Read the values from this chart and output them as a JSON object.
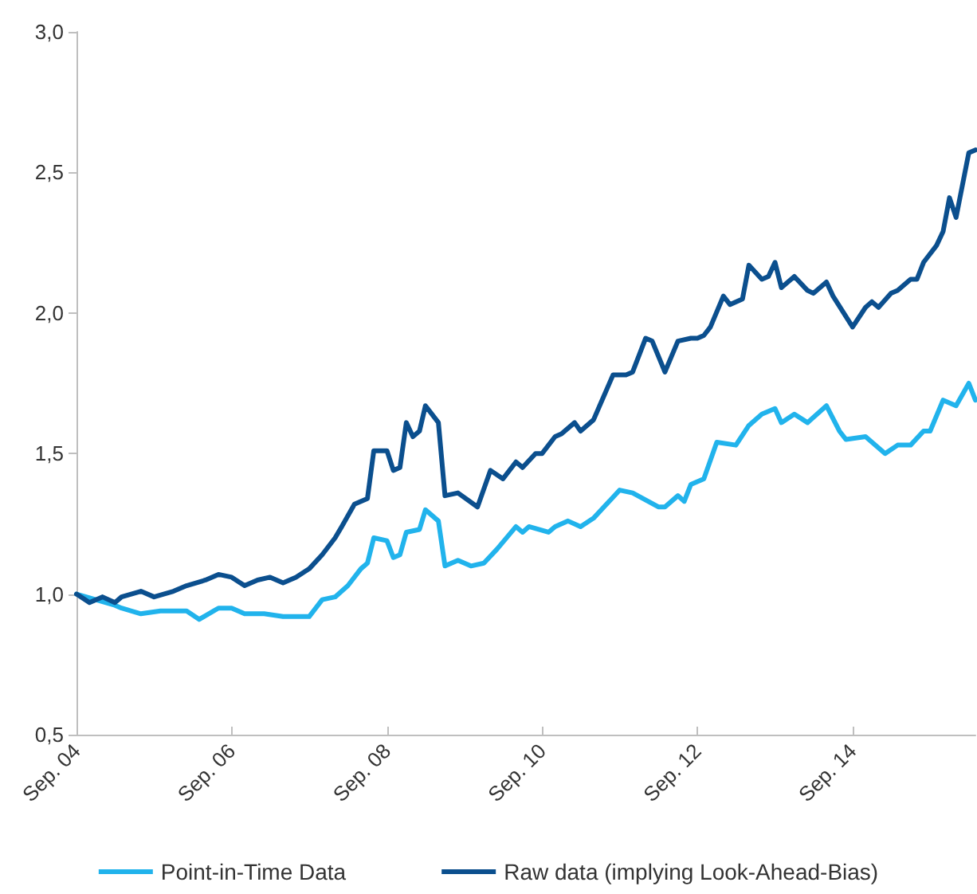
{
  "chart_data": {
    "type": "line",
    "marker": "none",
    "legend": "bottom",
    "grid": false,
    "xlim": [
      "2004-09",
      "2016-04"
    ],
    "xticks": [
      {
        "value": "2004-09",
        "label": "Sep. 04"
      },
      {
        "value": "2006-09",
        "label": "Sep. 06"
      },
      {
        "value": "2008-09",
        "label": "Sep. 08"
      },
      {
        "value": "2010-09",
        "label": "Sep. 10"
      },
      {
        "value": "2012-09",
        "label": "Sep. 12"
      },
      {
        "value": "2014-09",
        "label": "Sep. 14"
      }
    ],
    "ylim": [
      0.5,
      3.0
    ],
    "yticks": [
      {
        "value": 0.5,
        "label": "0,5"
      },
      {
        "value": 1.0,
        "label": "1,0"
      },
      {
        "value": 1.5,
        "label": "1,5"
      },
      {
        "value": 2.0,
        "label": "2,0"
      },
      {
        "value": 2.5,
        "label": "2,5"
      },
      {
        "value": 3.0,
        "label": "3,0"
      }
    ],
    "series": [
      {
        "name": "Point-in-Time Data",
        "color": "#21b3ec",
        "x": [
          "2004-09",
          "2005-03",
          "2005-04",
          "2005-07",
          "2005-10",
          "2006-02",
          "2006-04",
          "2006-07",
          "2006-09",
          "2006-11",
          "2007-02",
          "2007-05",
          "2007-09",
          "2007-11",
          "2008-01",
          "2008-03",
          "2008-05",
          "2008-06",
          "2008-07",
          "2008-09",
          "2008-10",
          "2008-11",
          "2008-12",
          "2009-02",
          "2009-03",
          "2009-05",
          "2009-06",
          "2009-08",
          "2009-10",
          "2009-12",
          "2010-02",
          "2010-05",
          "2010-06",
          "2010-07",
          "2010-10",
          "2010-11",
          "2011-01",
          "2011-03",
          "2011-05",
          "2011-09",
          "2011-11",
          "2012-03",
          "2012-04",
          "2012-06",
          "2012-07",
          "2012-08",
          "2012-10",
          "2012-12",
          "2013-03",
          "2013-05",
          "2013-07",
          "2013-09",
          "2013-10",
          "2013-12",
          "2014-02",
          "2014-05",
          "2014-07",
          "2014-08",
          "2014-11",
          "2015-02",
          "2015-04",
          "2015-06",
          "2015-08",
          "2015-09",
          "2015-11",
          "2016-01",
          "2016-03",
          "2016-04"
        ],
        "values": [
          1.0,
          0.96,
          0.95,
          0.93,
          0.94,
          0.94,
          0.91,
          0.95,
          0.95,
          0.93,
          0.93,
          0.92,
          0.92,
          0.98,
          0.99,
          1.03,
          1.09,
          1.11,
          1.2,
          1.19,
          1.13,
          1.14,
          1.22,
          1.23,
          1.3,
          1.26,
          1.1,
          1.12,
          1.1,
          1.11,
          1.16,
          1.24,
          1.22,
          1.24,
          1.22,
          1.24,
          1.26,
          1.24,
          1.27,
          1.37,
          1.36,
          1.31,
          1.31,
          1.35,
          1.33,
          1.39,
          1.41,
          1.54,
          1.53,
          1.6,
          1.64,
          1.66,
          1.61,
          1.64,
          1.61,
          1.67,
          1.58,
          1.55,
          1.56,
          1.5,
          1.53,
          1.53,
          1.58,
          1.58,
          1.69,
          1.67,
          1.75,
          1.69
        ]
      },
      {
        "name": "Raw data (implying Look-Ahead-Bias)",
        "color": "#0b4f8e",
        "x": [
          "2004-09",
          "2004-11",
          "2005-01",
          "2005-03",
          "2005-04",
          "2005-07",
          "2005-09",
          "2005-12",
          "2006-02",
          "2006-05",
          "2006-07",
          "2006-09",
          "2006-11",
          "2007-01",
          "2007-03",
          "2007-05",
          "2007-07",
          "2007-09",
          "2007-11",
          "2008-01",
          "2008-02",
          "2008-04",
          "2008-06",
          "2008-07",
          "2008-09",
          "2008-10",
          "2008-11",
          "2008-12",
          "2009-01",
          "2009-02",
          "2009-03",
          "2009-05",
          "2009-06",
          "2009-08",
          "2009-11",
          "2010-01",
          "2010-03",
          "2010-05",
          "2010-06",
          "2010-08",
          "2010-09",
          "2010-11",
          "2010-12",
          "2011-02",
          "2011-03",
          "2011-05",
          "2011-08",
          "2011-10",
          "2011-11",
          "2012-01",
          "2012-02",
          "2012-04",
          "2012-06",
          "2012-08",
          "2012-09",
          "2012-10",
          "2012-11",
          "2013-01",
          "2013-02",
          "2013-04",
          "2013-05",
          "2013-07",
          "2013-08",
          "2013-09",
          "2013-10",
          "2013-12",
          "2014-02",
          "2014-03",
          "2014-05",
          "2014-06",
          "2014-09",
          "2014-11",
          "2014-12",
          "2015-01",
          "2015-03",
          "2015-04",
          "2015-06",
          "2015-07",
          "2015-08",
          "2015-10",
          "2015-11",
          "2015-12",
          "2016-01",
          "2016-03",
          "2016-04"
        ],
        "values": [
          1.0,
          0.97,
          0.99,
          0.97,
          0.99,
          1.01,
          0.99,
          1.01,
          1.03,
          1.05,
          1.07,
          1.06,
          1.03,
          1.05,
          1.06,
          1.04,
          1.06,
          1.09,
          1.14,
          1.2,
          1.24,
          1.32,
          1.34,
          1.51,
          1.51,
          1.44,
          1.45,
          1.61,
          1.56,
          1.58,
          1.67,
          1.61,
          1.35,
          1.36,
          1.31,
          1.44,
          1.41,
          1.47,
          1.45,
          1.5,
          1.5,
          1.56,
          1.57,
          1.61,
          1.58,
          1.62,
          1.78,
          1.78,
          1.79,
          1.91,
          1.9,
          1.79,
          1.9,
          1.91,
          1.91,
          1.92,
          1.95,
          2.06,
          2.03,
          2.05,
          2.17,
          2.12,
          2.13,
          2.18,
          2.09,
          2.13,
          2.08,
          2.07,
          2.11,
          2.06,
          1.95,
          2.02,
          2.04,
          2.02,
          2.07,
          2.08,
          2.12,
          2.12,
          2.18,
          2.24,
          2.29,
          2.41,
          2.34,
          2.57,
          2.58
        ]
      }
    ]
  }
}
